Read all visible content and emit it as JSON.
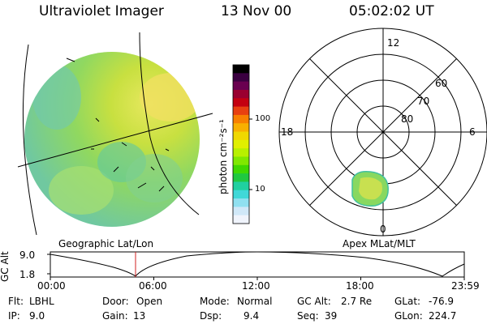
{
  "header": {
    "instrument": "Ultraviolet Imager",
    "date": "13 Nov 00",
    "time": "05:02:02 UT"
  },
  "image_panel": {
    "label": "Geographic Lat/Lon"
  },
  "colorbar": {
    "unit_label": "photon cm⁻²s⁻¹",
    "ticks": [
      "100",
      "10"
    ],
    "colors": [
      "#000000",
      "#3a0040",
      "#6a0050",
      "#9a0030",
      "#c40010",
      "#e84010",
      "#f88000",
      "#f8b000",
      "#f0d800",
      "#e0f000",
      "#b8f000",
      "#80e800",
      "#40d800",
      "#20c840",
      "#20d0a0",
      "#40d8d8",
      "#90e0f0",
      "#d0e8f8",
      "#f0f4fc"
    ]
  },
  "polar_panel": {
    "label": "Apex MLat/MLT",
    "mlt_labels": {
      "top": "12",
      "left": "18",
      "right": "6",
      "bottom": "0"
    },
    "lat_labels": [
      "60",
      "70",
      "80"
    ]
  },
  "altitude_plot": {
    "ylabel": "GC Alt",
    "yticks": [
      "9.0",
      "1.8"
    ],
    "xticks": [
      "00:00",
      "06:00",
      "12:00",
      "18:00",
      "23:59"
    ],
    "current_time_marker": "05:02"
  },
  "info": {
    "flt": {
      "label": "Flt:",
      "value": "LBHL"
    },
    "ip": {
      "label": "IP:",
      "value": "9.0"
    },
    "door": {
      "label": "Door:",
      "value": "Open"
    },
    "gain": {
      "label": "Gain:",
      "value": "13"
    },
    "mode": {
      "label": "Mode:",
      "value": "Normal"
    },
    "dsp": {
      "label": "Dsp:",
      "value": "9.4"
    },
    "gc_alt": {
      "label": "GC Alt:",
      "value": "2.7 Re"
    },
    "seq": {
      "label": "Seq:",
      "value": "39"
    },
    "glat": {
      "label": "GLat:",
      "value": "-76.9"
    },
    "glon": {
      "label": "GLon:",
      "value": "224.7"
    }
  }
}
